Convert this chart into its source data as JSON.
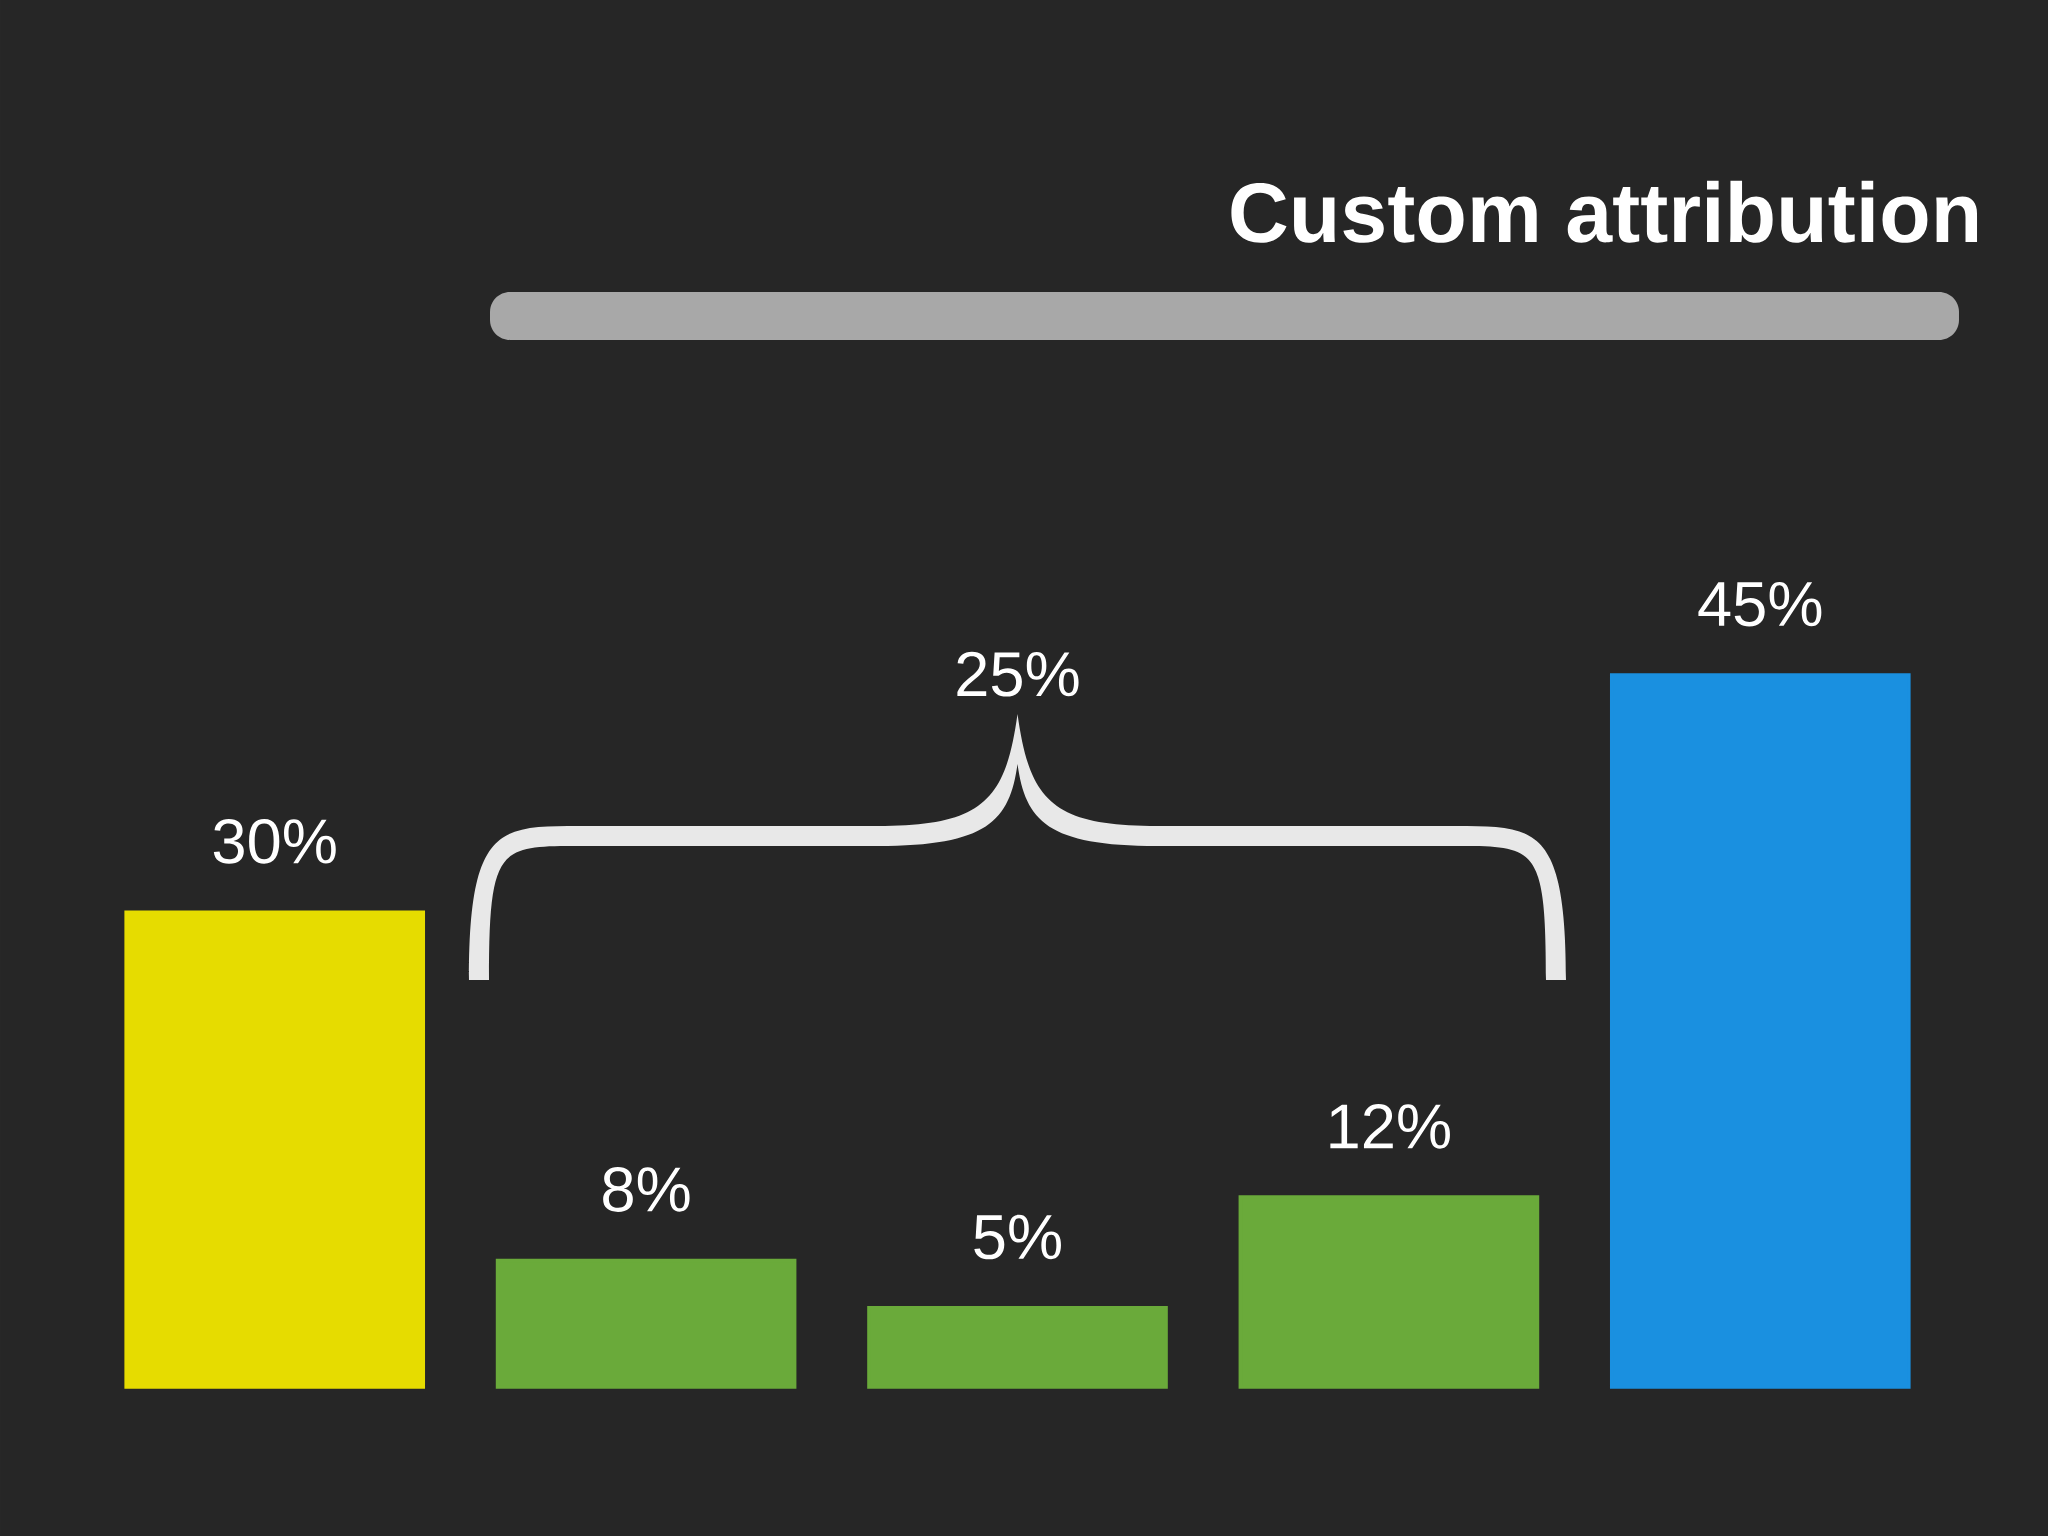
{
  "chart_data": {
    "type": "bar",
    "title": "Custom attribution",
    "categories": [
      null,
      null,
      null,
      null,
      null
    ],
    "values": [
      30,
      8,
      5,
      12,
      45
    ],
    "value_labels": [
      "30%",
      "8%",
      "5%",
      "12%",
      "45%"
    ],
    "colors": [
      "#e6dc00",
      "#6aaa3a",
      "#6aaa3a",
      "#6aaa3a",
      "#1a90e0"
    ],
    "annotations": [
      "25%"
    ],
    "tick_labels": false
  }
}
